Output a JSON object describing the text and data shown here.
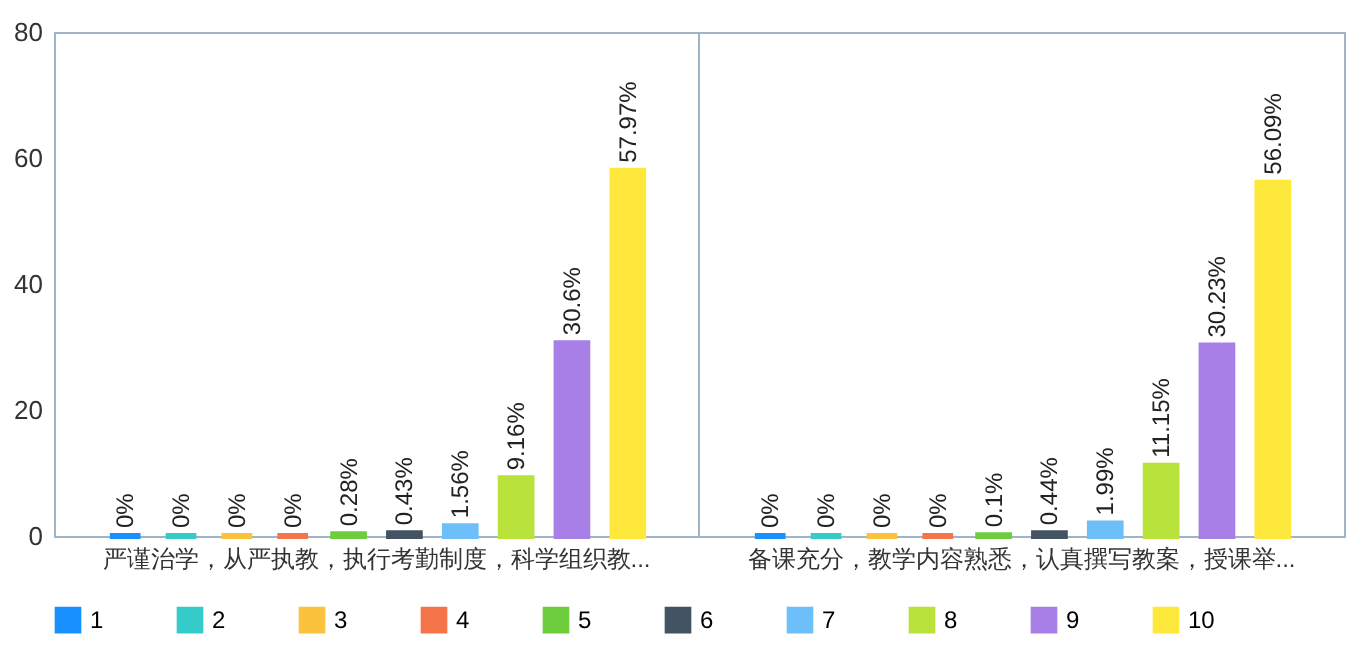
{
  "chart_data": {
    "type": "bar",
    "categories": [
      "严谨治学，从严执教，执行考勤制度，科学组织教...",
      "备课充分，教学内容熟悉，认真撰写教案，授课举..."
    ],
    "series": [
      {
        "name": "1",
        "color": "#1890ff",
        "values": [
          0,
          0
        ],
        "value_labels": [
          "0%",
          "0%"
        ]
      },
      {
        "name": "2",
        "color": "#36cbcb",
        "values": [
          0,
          0
        ],
        "value_labels": [
          "0%",
          "0%"
        ]
      },
      {
        "name": "3",
        "color": "#fbc23c",
        "values": [
          0,
          0
        ],
        "value_labels": [
          "0%",
          "0%"
        ]
      },
      {
        "name": "4",
        "color": "#f6744a",
        "values": [
          0,
          0
        ],
        "value_labels": [
          "0%",
          "0%"
        ]
      },
      {
        "name": "5",
        "color": "#6dcd3c",
        "values": [
          0.28,
          0.1
        ],
        "value_labels": [
          "0.28%",
          "0.1%"
        ]
      },
      {
        "name": "6",
        "color": "#435362",
        "values": [
          0.43,
          0.44
        ],
        "value_labels": [
          "0.43%",
          "0.44%"
        ]
      },
      {
        "name": "7",
        "color": "#6cbff8",
        "values": [
          1.56,
          1.99
        ],
        "value_labels": [
          "1.56%",
          "1.99%"
        ]
      },
      {
        "name": "8",
        "color": "#b9e33b",
        "values": [
          9.16,
          11.15
        ],
        "value_labels": [
          "9.16%",
          "11.15%"
        ]
      },
      {
        "name": "9",
        "color": "#a77fe6",
        "values": [
          30.6,
          30.23
        ],
        "value_labels": [
          "30.6%",
          "30.23%"
        ]
      },
      {
        "name": "10",
        "color": "#fde83b",
        "values": [
          57.97,
          56.09
        ],
        "value_labels": [
          "57.97%",
          "56.09%"
        ]
      }
    ],
    "ylim": [
      0,
      80
    ],
    "yticks": [
      0,
      20,
      40,
      60,
      80
    ],
    "grid": "x",
    "legend": "bottom"
  }
}
